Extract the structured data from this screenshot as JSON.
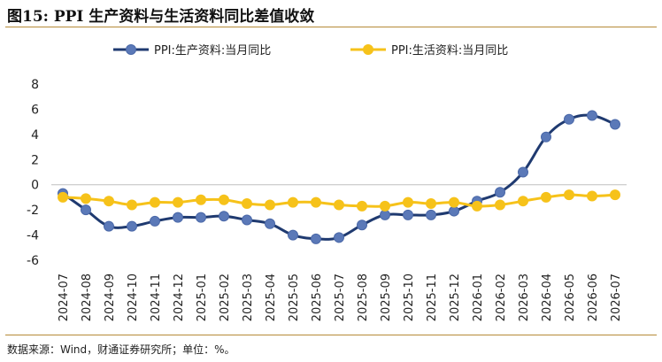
{
  "title": "图15: PPI 生产资料与生活资料同比差值收敛",
  "source": "数据来源：Wind，财通证券研究所；单位：%。",
  "colors": {
    "series1": "#1f3a70",
    "series2": "#f6c21a",
    "rule": "#b58a38"
  },
  "chart_data": {
    "type": "line",
    "x": [
      "2024-07",
      "2024-08",
      "2024-09",
      "2024-10",
      "2024-11",
      "2024-12",
      "2025-01",
      "2025-02",
      "2025-03",
      "2025-04",
      "2025-05",
      "2025-06",
      "2025-07",
      "2025-08",
      "2025-09",
      "2025-10",
      "2025-11",
      "2025-12",
      "2026-01",
      "2026-02",
      "2026-03",
      "2026-04",
      "2026-05",
      "2026-06",
      "2026-07"
    ],
    "yticks": [
      "8",
      "6",
      "4",
      "2",
      "0",
      "-2",
      "-4",
      "-6"
    ],
    "ylim": [
      -6,
      8
    ],
    "legend_position": "top",
    "series": [
      {
        "name": "PPI:生产资料:当月同比",
        "values": [
          -0.7,
          -2.0,
          -3.3,
          -3.3,
          -2.9,
          -2.6,
          -2.6,
          -2.5,
          -2.8,
          -3.1,
          -4.0,
          -4.3,
          -4.2,
          -3.2,
          -2.4,
          -2.4,
          -2.4,
          -2.1,
          -1.3,
          -0.6,
          1.0,
          3.8,
          5.2,
          5.5,
          4.8
        ]
      },
      {
        "name": "PPI:生活资料:当月同比",
        "values": [
          -1.0,
          -1.1,
          -1.3,
          -1.6,
          -1.4,
          -1.4,
          -1.2,
          -1.2,
          -1.5,
          -1.6,
          -1.4,
          -1.4,
          -1.6,
          -1.7,
          -1.7,
          -1.4,
          -1.5,
          -1.4,
          -1.7,
          -1.6,
          -1.3,
          -1.0,
          -0.8,
          -0.9,
          -0.8
        ]
      }
    ]
  }
}
